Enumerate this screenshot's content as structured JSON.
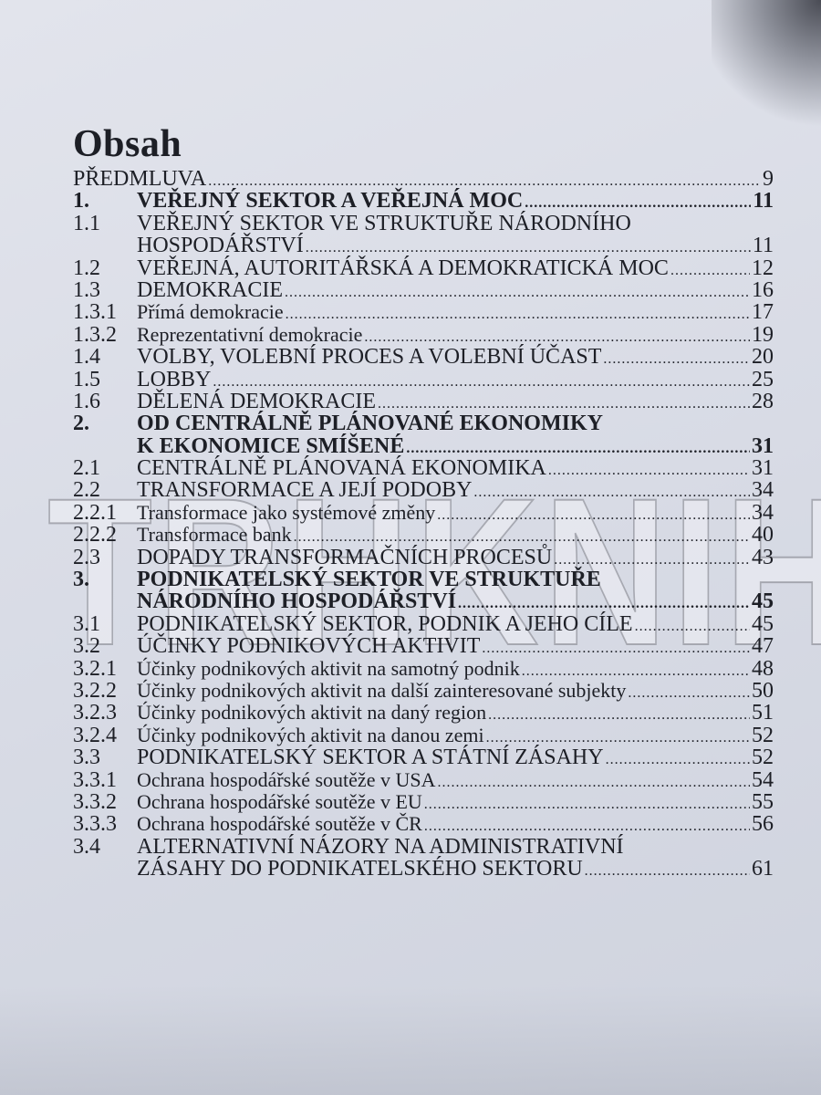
{
  "title": "Obsah",
  "watermark": "TRHKNIH",
  "entries": [
    {
      "num": "",
      "lines": [
        "PŘEDMLUVA"
      ],
      "page": "9",
      "bold": false,
      "level": 0
    },
    {
      "num": "1.",
      "lines": [
        "VEŘEJNÝ SEKTOR A VEŘEJNÁ MOC"
      ],
      "page": "11",
      "bold": true,
      "level": 1
    },
    {
      "num": "1.1",
      "lines": [
        "VEŘEJNÝ SEKTOR VE STRUKTUŘE NÁRODNÍHO",
        "HOSPODÁŘSTVÍ"
      ],
      "page": "11",
      "bold": false,
      "level": 2
    },
    {
      "num": "1.2",
      "lines": [
        "VEŘEJNÁ, AUTORITÁŘSKÁ A DEMOKRATICKÁ MOC"
      ],
      "page": "12",
      "bold": false,
      "level": 2
    },
    {
      "num": "1.3",
      "lines": [
        "DEMOKRACIE"
      ],
      "page": "16",
      "bold": false,
      "level": 2
    },
    {
      "num": "1.3.1",
      "lines": [
        "Přímá demokracie"
      ],
      "page": "17",
      "bold": false,
      "level": 3
    },
    {
      "num": "1.3.2",
      "lines": [
        "Reprezentativní demokracie"
      ],
      "page": "19",
      "bold": false,
      "level": 3
    },
    {
      "num": "1.4",
      "lines": [
        "VOLBY, VOLEBNÍ PROCES A VOLEBNÍ ÚČAST"
      ],
      "page": "20",
      "bold": false,
      "level": 2
    },
    {
      "num": "1.5",
      "lines": [
        "LOBBY"
      ],
      "page": "25",
      "bold": false,
      "level": 2
    },
    {
      "num": "1.6",
      "lines": [
        "DĚLENÁ DEMOKRACIE"
      ],
      "page": "28",
      "bold": false,
      "level": 2
    },
    {
      "num": "2.",
      "lines": [
        "OD CENTRÁLNĚ PLÁNOVANÉ EKONOMIKY",
        "K EKONOMICE SMÍŠENÉ"
      ],
      "page": "31",
      "bold": true,
      "level": 1
    },
    {
      "num": "2.1",
      "lines": [
        "CENTRÁLNĚ PLÁNOVANÁ EKONOMIKA"
      ],
      "page": "31",
      "bold": false,
      "level": 2
    },
    {
      "num": "2.2",
      "lines": [
        "TRANSFORMACE A JEJÍ PODOBY"
      ],
      "page": "34",
      "bold": false,
      "level": 2
    },
    {
      "num": "2.2.1",
      "lines": [
        "Transformace jako systémové změny"
      ],
      "page": "34",
      "bold": false,
      "level": 3
    },
    {
      "num": "2.2.2",
      "lines": [
        "Transformace bank"
      ],
      "page": "40",
      "bold": false,
      "level": 3
    },
    {
      "num": "2.3",
      "lines": [
        "DOPADY TRANSFORMAČNÍCH PROCESŮ"
      ],
      "page": "43",
      "bold": false,
      "level": 2
    },
    {
      "num": "3.",
      "lines": [
        "PODNIKATELSKÝ SEKTOR VE STRUKTUŘE",
        "NÁRODNÍHO HOSPODÁŘSTVÍ"
      ],
      "page": "45",
      "bold": true,
      "level": 1
    },
    {
      "num": "3.1",
      "lines": [
        "PODNIKATELSKÝ SEKTOR, PODNIK A JEHO CÍLE"
      ],
      "page": "45",
      "bold": false,
      "level": 2
    },
    {
      "num": "3.2",
      "lines": [
        "ÚČINKY PODNIKOVÝCH AKTIVIT"
      ],
      "page": "47",
      "bold": false,
      "level": 2
    },
    {
      "num": "3.2.1",
      "lines": [
        "Účinky podnikových aktivit na samotný podnik"
      ],
      "page": "48",
      "bold": false,
      "level": 3
    },
    {
      "num": "3.2.2",
      "lines": [
        "Účinky podnikových aktivit na další zainteresované subjekty"
      ],
      "page": "50",
      "bold": false,
      "level": 3
    },
    {
      "num": "3.2.3",
      "lines": [
        "Účinky podnikových aktivit na daný region"
      ],
      "page": "51",
      "bold": false,
      "level": 3
    },
    {
      "num": "3.2.4",
      "lines": [
        "Účinky podnikových aktivit na danou zemi"
      ],
      "page": "52",
      "bold": false,
      "level": 3
    },
    {
      "num": "3.3",
      "lines": [
        "PODNIKATELSKÝ SEKTOR A STÁTNÍ ZÁSAHY"
      ],
      "page": "52",
      "bold": false,
      "level": 2
    },
    {
      "num": "3.3.1",
      "lines": [
        "Ochrana hospodářské soutěže v USA"
      ],
      "page": "54",
      "bold": false,
      "level": 3
    },
    {
      "num": "3.3.2",
      "lines": [
        "Ochrana hospodářské soutěže v EU"
      ],
      "page": "55",
      "bold": false,
      "level": 3
    },
    {
      "num": "3.3.3",
      "lines": [
        "Ochrana hospodářské soutěže v ČR"
      ],
      "page": "56",
      "bold": false,
      "level": 3
    },
    {
      "num": "3.4",
      "lines": [
        "ALTERNATIVNÍ NÁZORY NA ADMINISTRATIVNÍ",
        "ZÁSAHY DO PODNIKATELSKÉHO SEKTORU"
      ],
      "page": "61",
      "bold": false,
      "level": 2
    }
  ]
}
